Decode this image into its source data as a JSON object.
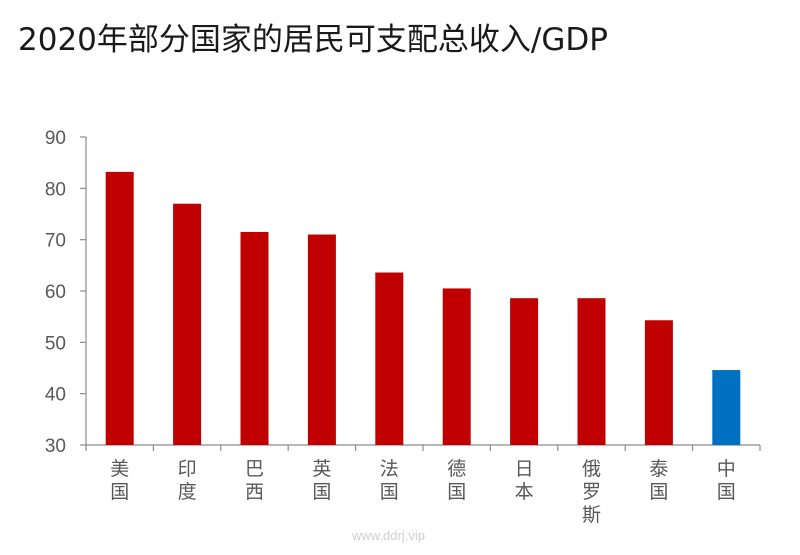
{
  "chart_data": {
    "type": "bar",
    "title": "2020年部分国家的居民可支配总收入/GDP",
    "xlabel": "",
    "ylabel": "",
    "categories": [
      "美国",
      "印度",
      "巴西",
      "英国",
      "法国",
      "德国",
      "日本",
      "俄罗斯",
      "泰国",
      "中国"
    ],
    "values": [
      83.2,
      77.0,
      71.5,
      71.0,
      63.6,
      60.5,
      58.6,
      58.6,
      54.3,
      44.6
    ],
    "highlight_index": 9,
    "ylim": [
      30,
      90
    ],
    "yticks": [
      30,
      40,
      50,
      60,
      70,
      80,
      90
    ],
    "grid": false,
    "legend": "none",
    "colors": {
      "bar": "#c00000",
      "highlight": "#0070c0",
      "axis": "#8c8c8c",
      "tick_text": "#595959"
    }
  },
  "watermark": "www.ddrj.vip"
}
